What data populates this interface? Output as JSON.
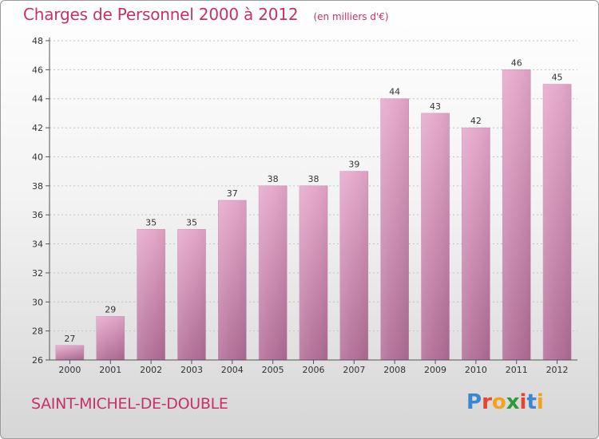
{
  "chart_data": {
    "type": "bar",
    "title": "Charges de Personnel 2000 à 2012",
    "subtitle": "(en milliers d'€)",
    "categories": [
      "2000",
      "2001",
      "2002",
      "2003",
      "2004",
      "2005",
      "2006",
      "2007",
      "2008",
      "2009",
      "2010",
      "2011",
      "2012"
    ],
    "values": [
      27,
      29,
      35,
      35,
      37,
      38,
      38,
      39,
      44,
      43,
      42,
      46,
      45
    ],
    "ylim": [
      26,
      48
    ],
    "yticks": [
      26,
      28,
      30,
      32,
      34,
      36,
      38,
      40,
      42,
      44,
      46,
      48
    ],
    "grid": true,
    "bar_color": "#d88fb6",
    "legend": "none"
  },
  "location": "SAINT-MICHEL-DE-DOUBLE",
  "logo": {
    "letters": [
      {
        "ch": "P",
        "color": "#3a86d0"
      },
      {
        "ch": "r",
        "color": "#e8432c"
      },
      {
        "ch": "o",
        "color": "#f2a21b"
      },
      {
        "ch": "x",
        "color": "#2f9a3b"
      },
      {
        "ch": "i",
        "color": "#e8432c"
      },
      {
        "ch": "t",
        "color": "#3a86d0"
      },
      {
        "ch": "i",
        "color": "#f2a21b"
      }
    ]
  },
  "colors": {
    "accent": "#c8306a",
    "grid": "#c4c4c4",
    "axis": "#555555"
  }
}
